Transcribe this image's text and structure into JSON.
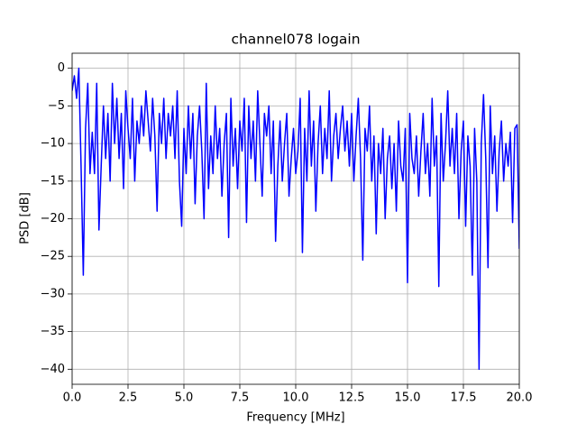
{
  "chart_data": {
    "type": "line",
    "title": "channel078 logain",
    "xlabel": "Frequency [MHz]",
    "ylabel": "PSD [dB]",
    "x": [
      0,
      0.1,
      0.2,
      0.3,
      0.4,
      0.5,
      0.6,
      0.7,
      0.8,
      0.9,
      1,
      1.1,
      1.2,
      1.3,
      1.4,
      1.5,
      1.6,
      1.7,
      1.8,
      1.9,
      2,
      2.1,
      2.2,
      2.3,
      2.4,
      2.5,
      2.6,
      2.7,
      2.8,
      2.9,
      3,
      3.1,
      3.2,
      3.3,
      3.4,
      3.5,
      3.6,
      3.7,
      3.8,
      3.9,
      4,
      4.1,
      4.2,
      4.3,
      4.4,
      4.5,
      4.6,
      4.7,
      4.8,
      4.9,
      5,
      5.1,
      5.2,
      5.3,
      5.4,
      5.5,
      5.6,
      5.7,
      5.8,
      5.9,
      6,
      6.1,
      6.2,
      6.3,
      6.4,
      6.5,
      6.6,
      6.7,
      6.8,
      6.9,
      7,
      7.1,
      7.2,
      7.3,
      7.4,
      7.5,
      7.6,
      7.7,
      7.8,
      7.9,
      8,
      8.1,
      8.2,
      8.3,
      8.4,
      8.5,
      8.6,
      8.7,
      8.8,
      8.9,
      9,
      9.1,
      9.2,
      9.3,
      9.4,
      9.5,
      9.6,
      9.7,
      9.8,
      9.9,
      10,
      10.1,
      10.2,
      10.3,
      10.4,
      10.5,
      10.6,
      10.7,
      10.8,
      10.9,
      11,
      11.1,
      11.2,
      11.3,
      11.4,
      11.5,
      11.6,
      11.7,
      11.8,
      11.9,
      12,
      12.1,
      12.2,
      12.3,
      12.4,
      12.5,
      12.6,
      12.7,
      12.8,
      12.9,
      13,
      13.1,
      13.2,
      13.3,
      13.4,
      13.5,
      13.6,
      13.7,
      13.8,
      13.9,
      14,
      14.1,
      14.2,
      14.3,
      14.4,
      14.5,
      14.6,
      14.7,
      14.8,
      14.9,
      15,
      15.1,
      15.2,
      15.3,
      15.4,
      15.5,
      15.6,
      15.7,
      15.8,
      15.9,
      16,
      16.1,
      16.2,
      16.3,
      16.4,
      16.5,
      16.6,
      16.7,
      16.8,
      16.9,
      17,
      17.1,
      17.2,
      17.3,
      17.4,
      17.5,
      17.6,
      17.7,
      17.8,
      17.9,
      18,
      18.1,
      18.2,
      18.3,
      18.4,
      18.5,
      18.6,
      18.7,
      18.8,
      18.9,
      19,
      19.1,
      19.2,
      19.3,
      19.4,
      19.5,
      19.6,
      19.7,
      19.8,
      19.9,
      20
    ],
    "series": [
      {
        "name": "channel078",
        "color": "#0000ff",
        "values": [
          -3,
          -1,
          -4,
          0,
          -13,
          -27.5,
          -8,
          -2,
          -14,
          -8.5,
          -14,
          -2,
          -21.5,
          -13,
          -5,
          -12,
          -6,
          -15,
          -2,
          -10,
          -4,
          -12,
          -6,
          -16,
          -3,
          -8,
          -12,
          -4,
          -15,
          -7,
          -10,
          -5,
          -9,
          -3,
          -7,
          -11,
          -4,
          -9,
          -19,
          -6,
          -10,
          -4,
          -12,
          -6,
          -9,
          -5,
          -12,
          -3,
          -15,
          -21,
          -8,
          -14,
          -5,
          -12,
          -6,
          -18,
          -9,
          -5,
          -11,
          -20,
          -2,
          -16,
          -9,
          -14,
          -5,
          -12,
          -8,
          -17,
          -10,
          -6,
          -22.5,
          -4,
          -13,
          -8,
          -16,
          -7,
          -11,
          -4,
          -20.5,
          -5,
          -12,
          -7,
          -15,
          -3,
          -10,
          -17,
          -6,
          -9,
          -5,
          -14,
          -7,
          -23,
          -13,
          -7,
          -15,
          -10,
          -6,
          -17,
          -12,
          -8,
          -14,
          -11,
          -4,
          -24.5,
          -8,
          -15,
          -3,
          -13,
          -7,
          -19,
          -10,
          -5,
          -14,
          -8,
          -12,
          -3,
          -15,
          -9,
          -6,
          -12,
          -8,
          -5,
          -11,
          -7,
          -13,
          -6,
          -15,
          -9,
          -4,
          -12,
          -25.5,
          -8,
          -11,
          -5,
          -15,
          -9,
          -22,
          -10,
          -14,
          -8,
          -20,
          -12,
          -9,
          -16,
          -10,
          -19,
          -7,
          -13,
          -15,
          -8,
          -28.5,
          -6,
          -12,
          -14,
          -9,
          -17,
          -11,
          -6,
          -14,
          -10,
          -17,
          -4,
          -13,
          -9,
          -29,
          -6,
          -15,
          -10,
          -3,
          -13,
          -8,
          -14,
          -6,
          -20,
          -11,
          -7,
          -21,
          -9,
          -13,
          -27.5,
          -8,
          -15,
          -40,
          -10,
          -3.5,
          -12,
          -26.5,
          -5,
          -14,
          -9,
          -19,
          -11,
          -7,
          -15,
          -10,
          -13,
          -8.5,
          -20.5,
          -8,
          -7.5,
          -24
        ]
      }
    ],
    "xlim": [
      0,
      20
    ],
    "ylim": [
      -42,
      2
    ],
    "xticks": [
      {
        "value": 0,
        "label": "0.0"
      },
      2.5,
      {
        "value": 5,
        "label": "5.0"
      },
      7.5,
      {
        "value": 10,
        "label": "10.0"
      },
      12.5,
      {
        "value": 15,
        "label": "15.0"
      },
      17.5,
      {
        "value": 20,
        "label": "20.0"
      }
    ],
    "yticks": [
      {
        "value": 0,
        "label": "0"
      },
      {
        "value": -5,
        "label": "−5"
      },
      {
        "value": -10,
        "label": "−10"
      },
      {
        "value": -15,
        "label": "−15"
      },
      {
        "value": -20,
        "label": "−20"
      },
      {
        "value": -25,
        "label": "−25"
      },
      {
        "value": -30,
        "label": "−30"
      },
      {
        "value": -35,
        "label": "−35"
      },
      {
        "value": -40,
        "label": "−40"
      }
    ],
    "grid": true
  }
}
